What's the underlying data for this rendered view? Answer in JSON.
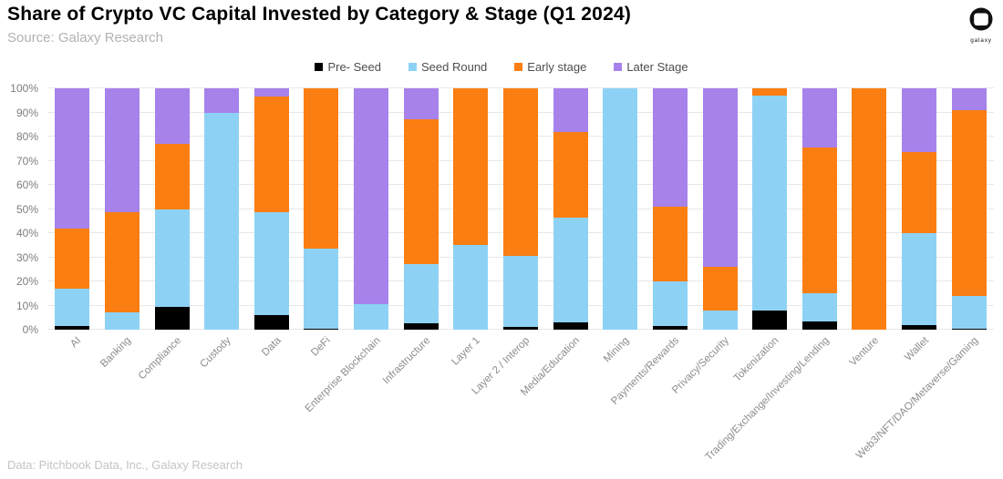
{
  "header": {
    "title": "Share of Crypto VC Capital Invested by Category & Stage (Q1 2024)",
    "source": "Source: Galaxy Research",
    "logo_text": "galaxy"
  },
  "footer": {
    "credit": "Data: Pitchbook Data, Inc., Galaxy Research"
  },
  "colors": {
    "pre_seed": "#000000",
    "seed_round": "#8DD2F5",
    "early_stage": "#FA7E11",
    "later_stage": "#A682EA",
    "gridline": "#E8E8E8",
    "axis_text": "#7D7D7D"
  },
  "chart_data": {
    "type": "bar",
    "stacked": true,
    "normalized_percent": true,
    "title": "Share of Crypto VC Capital Invested by Category & Stage (Q1 2024)",
    "xlabel": "",
    "ylabel": "",
    "ylim": [
      0,
      100
    ],
    "grid": "horizontal",
    "legend_position": "top-center",
    "y_ticks": [
      "0%",
      "10%",
      "20%",
      "30%",
      "40%",
      "50%",
      "60%",
      "70%",
      "80%",
      "90%",
      "100%"
    ],
    "categories": [
      "AI",
      "Banking",
      "Compliance",
      "Custody",
      "Data",
      "DeFi",
      "Enterprise Blockchain",
      "Infrastructure",
      "Layer 1",
      "Layer 2 / Interop",
      "Media/Education",
      "Mining",
      "Payments/Rewards",
      "Privacy/Security",
      "Tokenization",
      "Trading/Exchange/Investing/Lending",
      "Venture",
      "Wallet",
      "Web3/NFT/DAO/Metaverse/Gaming"
    ],
    "series": [
      {
        "name": "Pre- Seed",
        "color": "#000000",
        "values": [
          1.5,
          0,
          9.5,
          0,
          6,
          0.5,
          0,
          2.5,
          0,
          1,
          3,
          0,
          1.5,
          0,
          8,
          3.5,
          0,
          2,
          0.5
        ]
      },
      {
        "name": "Seed Round",
        "color": "#8DD2F5",
        "values": [
          15.5,
          7,
          40.5,
          90,
          42.5,
          33,
          10.5,
          24.5,
          35,
          29.5,
          43.5,
          100,
          18.5,
          8,
          89,
          11.5,
          0,
          38,
          13.5
        ]
      },
      {
        "name": "Early stage",
        "color": "#FA7E11",
        "values": [
          25,
          41.5,
          27,
          0,
          48,
          66.5,
          0,
          60,
          65,
          69.5,
          35.5,
          0,
          31,
          18,
          3,
          60.5,
          100,
          33.5,
          77
        ]
      },
      {
        "name": "Later Stage",
        "color": "#A682EA",
        "values": [
          58,
          51.5,
          23,
          10,
          3.5,
          0,
          89.5,
          13,
          0,
          0,
          18,
          0,
          49,
          74,
          0,
          24.5,
          0,
          26.5,
          9
        ]
      }
    ]
  }
}
